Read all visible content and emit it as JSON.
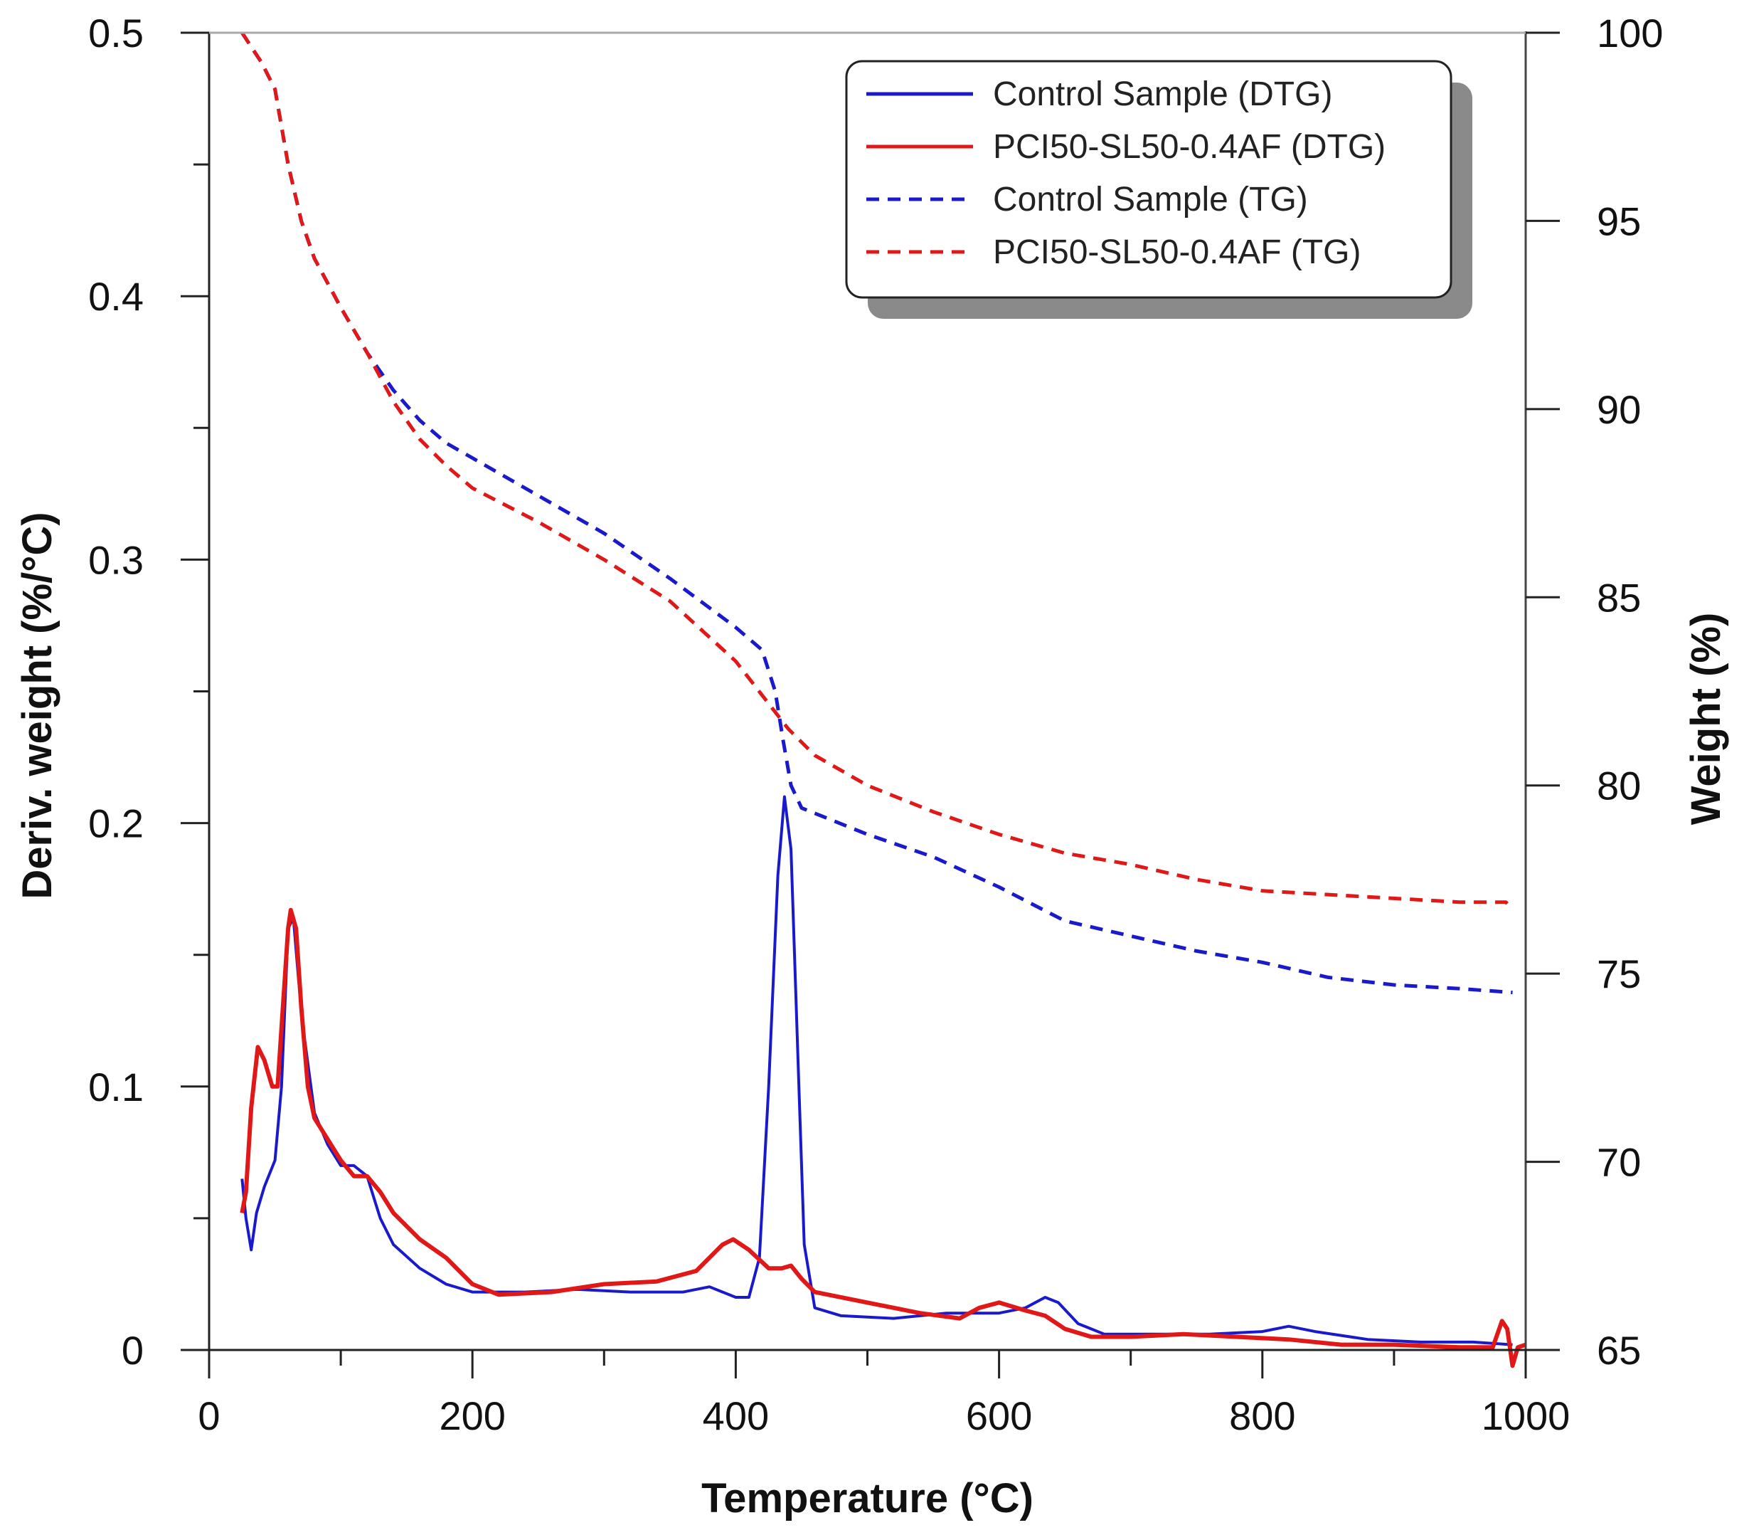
{
  "chart_data": {
    "type": "line",
    "xlabel": "Temperature (°C)",
    "ylabel_left": "Deriv. weight (%/°C)",
    "ylabel_right": "Weight (%)",
    "xlim": [
      0,
      1000
    ],
    "ylim_left": [
      0,
      0.5
    ],
    "ylim_right": [
      65,
      100
    ],
    "x_ticks": [
      0,
      200,
      400,
      600,
      800,
      1000
    ],
    "x_tick_labels": [
      "0",
      "200",
      "400",
      "600",
      "800",
      "1000"
    ],
    "y_left_ticks": [
      0,
      0.1,
      0.2,
      0.3,
      0.4,
      0.5
    ],
    "y_left_tick_labels": [
      "0",
      "0.1",
      "0.2",
      "0.3",
      "0.4",
      "0.5"
    ],
    "y_right_ticks": [
      65,
      70,
      75,
      80,
      85,
      90,
      95,
      100
    ],
    "y_right_tick_labels": [
      "65",
      "70",
      "75",
      "80",
      "85",
      "90",
      "95",
      "100"
    ],
    "legend_position": "top-right",
    "series": [
      {
        "name": "Control Sample (DTG)",
        "axis": "left",
        "color": "#1a1acc",
        "dash": "solid",
        "points": [
          [
            25,
            0.065
          ],
          [
            28,
            0.05
          ],
          [
            32,
            0.038
          ],
          [
            36,
            0.052
          ],
          [
            42,
            0.062
          ],
          [
            50,
            0.072
          ],
          [
            55,
            0.1
          ],
          [
            60,
            0.16
          ],
          [
            64,
            0.164
          ],
          [
            68,
            0.14
          ],
          [
            72,
            0.12
          ],
          [
            80,
            0.09
          ],
          [
            90,
            0.078
          ],
          [
            100,
            0.07
          ],
          [
            110,
            0.07
          ],
          [
            120,
            0.066
          ],
          [
            130,
            0.05
          ],
          [
            140,
            0.04
          ],
          [
            160,
            0.031
          ],
          [
            180,
            0.025
          ],
          [
            200,
            0.022
          ],
          [
            240,
            0.022
          ],
          [
            280,
            0.023
          ],
          [
            320,
            0.022
          ],
          [
            360,
            0.022
          ],
          [
            380,
            0.024
          ],
          [
            400,
            0.02
          ],
          [
            410,
            0.02
          ],
          [
            418,
            0.035
          ],
          [
            425,
            0.1
          ],
          [
            432,
            0.18
          ],
          [
            437,
            0.21
          ],
          [
            442,
            0.19
          ],
          [
            448,
            0.1
          ],
          [
            452,
            0.04
          ],
          [
            460,
            0.016
          ],
          [
            480,
            0.013
          ],
          [
            520,
            0.012
          ],
          [
            560,
            0.014
          ],
          [
            600,
            0.014
          ],
          [
            620,
            0.016
          ],
          [
            635,
            0.02
          ],
          [
            645,
            0.018
          ],
          [
            660,
            0.01
          ],
          [
            680,
            0.006
          ],
          [
            720,
            0.006
          ],
          [
            760,
            0.006
          ],
          [
            800,
            0.007
          ],
          [
            820,
            0.009
          ],
          [
            840,
            0.007
          ],
          [
            880,
            0.004
          ],
          [
            920,
            0.003
          ],
          [
            960,
            0.003
          ],
          [
            990,
            0.002
          ]
        ]
      },
      {
        "name": "PCI50-SL50-0.4AF (DTG)",
        "axis": "left",
        "color": "#e01818",
        "dash": "solid",
        "points": [
          [
            25,
            0.052
          ],
          [
            28,
            0.06
          ],
          [
            32,
            0.092
          ],
          [
            37,
            0.115
          ],
          [
            42,
            0.11
          ],
          [
            48,
            0.1
          ],
          [
            52,
            0.1
          ],
          [
            56,
            0.13
          ],
          [
            60,
            0.16
          ],
          [
            62,
            0.167
          ],
          [
            66,
            0.16
          ],
          [
            70,
            0.13
          ],
          [
            75,
            0.1
          ],
          [
            80,
            0.088
          ],
          [
            90,
            0.08
          ],
          [
            100,
            0.072
          ],
          [
            110,
            0.066
          ],
          [
            120,
            0.066
          ],
          [
            130,
            0.06
          ],
          [
            140,
            0.052
          ],
          [
            160,
            0.042
          ],
          [
            180,
            0.035
          ],
          [
            200,
            0.025
          ],
          [
            220,
            0.021
          ],
          [
            260,
            0.022
          ],
          [
            300,
            0.025
          ],
          [
            340,
            0.026
          ],
          [
            370,
            0.03
          ],
          [
            390,
            0.04
          ],
          [
            398,
            0.042
          ],
          [
            410,
            0.038
          ],
          [
            425,
            0.031
          ],
          [
            435,
            0.031
          ],
          [
            442,
            0.032
          ],
          [
            450,
            0.027
          ],
          [
            460,
            0.022
          ],
          [
            500,
            0.018
          ],
          [
            540,
            0.014
          ],
          [
            570,
            0.012
          ],
          [
            585,
            0.016
          ],
          [
            600,
            0.018
          ],
          [
            620,
            0.015
          ],
          [
            635,
            0.013
          ],
          [
            650,
            0.008
          ],
          [
            670,
            0.005
          ],
          [
            700,
            0.005
          ],
          [
            740,
            0.006
          ],
          [
            780,
            0.005
          ],
          [
            820,
            0.004
          ],
          [
            860,
            0.002
          ],
          [
            900,
            0.002
          ],
          [
            950,
            0.001
          ],
          [
            975,
            0.001
          ],
          [
            982,
            0.011
          ],
          [
            986,
            0.008
          ],
          [
            990,
            -0.006
          ],
          [
            994,
            0.001
          ],
          [
            1000,
            0.002
          ]
        ]
      },
      {
        "name": "Control Sample (TG)",
        "axis": "right",
        "color": "#1a1acc",
        "dash": "dashed",
        "points": [
          [
            25,
            100
          ],
          [
            40,
            99.2
          ],
          [
            50,
            98.5
          ],
          [
            60,
            96.5
          ],
          [
            70,
            95
          ],
          [
            80,
            94
          ],
          [
            100,
            92.7
          ],
          [
            120,
            91.5
          ],
          [
            140,
            90.5
          ],
          [
            160,
            89.7
          ],
          [
            180,
            89.1
          ],
          [
            200,
            88.7
          ],
          [
            250,
            87.7
          ],
          [
            300,
            86.7
          ],
          [
            350,
            85.5
          ],
          [
            400,
            84.2
          ],
          [
            420,
            83.6
          ],
          [
            430,
            82.5
          ],
          [
            436,
            81.2
          ],
          [
            442,
            80
          ],
          [
            450,
            79.4
          ],
          [
            500,
            78.7
          ],
          [
            550,
            78.1
          ],
          [
            600,
            77.3
          ],
          [
            650,
            76.4
          ],
          [
            700,
            76
          ],
          [
            750,
            75.6
          ],
          [
            800,
            75.3
          ],
          [
            850,
            74.9
          ],
          [
            900,
            74.7
          ],
          [
            950,
            74.6
          ],
          [
            990,
            74.5
          ]
        ]
      },
      {
        "name": "PCI50-SL50-0.4AF (TG)",
        "axis": "right",
        "color": "#e01818",
        "dash": "dashed",
        "points": [
          [
            25,
            100
          ],
          [
            40,
            99.2
          ],
          [
            50,
            98.5
          ],
          [
            60,
            96.5
          ],
          [
            70,
            95
          ],
          [
            80,
            94
          ],
          [
            100,
            92.7
          ],
          [
            120,
            91.5
          ],
          [
            140,
            90.2
          ],
          [
            160,
            89.2
          ],
          [
            180,
            88.5
          ],
          [
            200,
            87.9
          ],
          [
            250,
            87
          ],
          [
            300,
            86
          ],
          [
            350,
            84.9
          ],
          [
            400,
            83.3
          ],
          [
            420,
            82.4
          ],
          [
            440,
            81.5
          ],
          [
            460,
            80.8
          ],
          [
            500,
            80
          ],
          [
            550,
            79.3
          ],
          [
            600,
            78.7
          ],
          [
            650,
            78.2
          ],
          [
            700,
            77.9
          ],
          [
            750,
            77.5
          ],
          [
            800,
            77.2
          ],
          [
            850,
            77.1
          ],
          [
            900,
            77
          ],
          [
            950,
            76.9
          ],
          [
            985,
            76.9
          ],
          [
            990,
            76.7
          ]
        ]
      }
    ]
  }
}
